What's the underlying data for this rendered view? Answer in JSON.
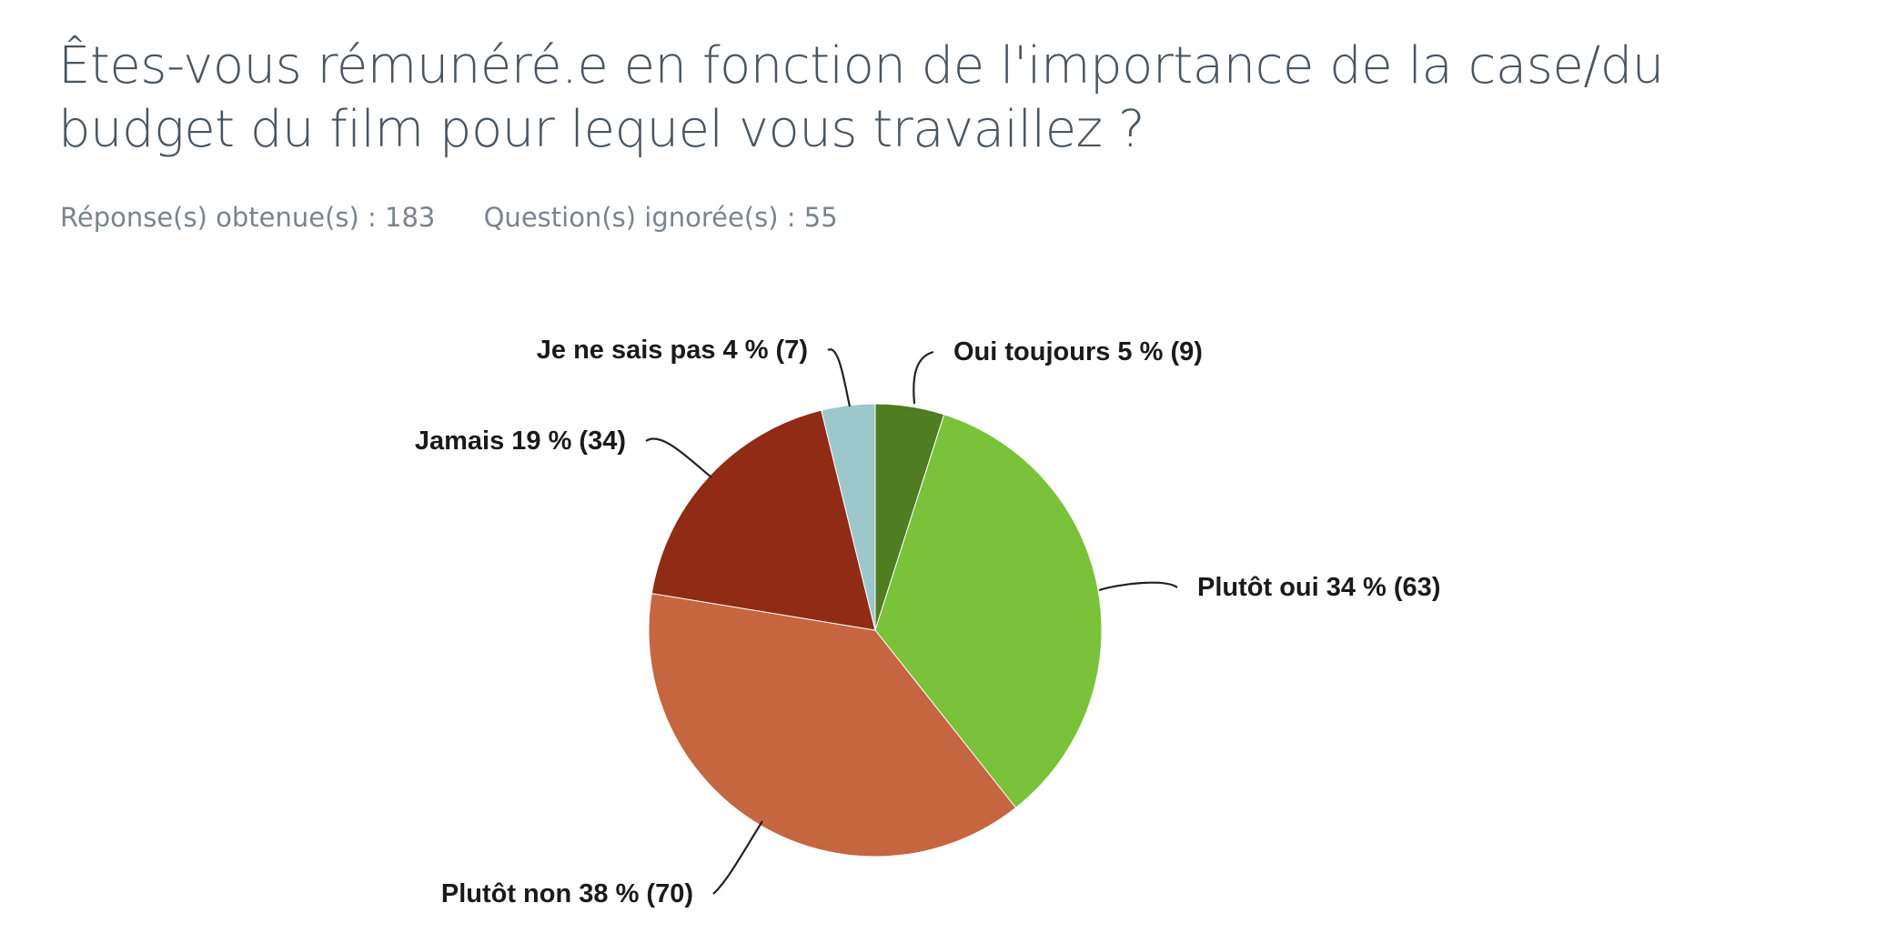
{
  "header": {
    "title": "Êtes-vous rémunéré.e en fonction de l'importance de la case/du budget du film pour lequel vous travaillez ?",
    "answered": "Réponse(s) obtenue(s) : 183",
    "skipped": "Question(s) ignorée(s) : 55"
  },
  "chart_data": {
    "type": "pie",
    "title": "Êtes-vous rémunéré.e en fonction de l'importance de la case/du budget du film pour lequel vous travaillez ?",
    "slices": [
      {
        "label": "Oui toujours",
        "percent": 5,
        "count": 9,
        "color": "#507d22",
        "display": "Oui toujours 5 % (9)"
      },
      {
        "label": "Plutôt oui",
        "percent": 34,
        "count": 63,
        "color": "#7ac23a",
        "display": "Plutôt oui 34 % (63)"
      },
      {
        "label": "Plutôt non",
        "percent": 38,
        "count": 70,
        "color": "#c66641",
        "display": "Plutôt non 38 % (70)"
      },
      {
        "label": "Jamais",
        "percent": 19,
        "count": 34,
        "color": "#902b16",
        "display": "Jamais 19 % (34)"
      },
      {
        "label": "Je ne sais pas",
        "percent": 4,
        "count": 7,
        "color": "#9cc8cb",
        "display": "Je ne sais pas 4 % (7)"
      }
    ]
  }
}
